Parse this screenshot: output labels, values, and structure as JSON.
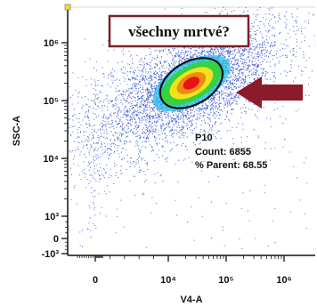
{
  "chart_data": {
    "type": "scatter",
    "plot_style": "flow-cytometry-density-dotplot",
    "xlabel": "V4-A",
    "ylabel": "SSC-A",
    "x_scale": "biexponential",
    "y_scale": "biexponential",
    "x_ticks": [
      {
        "value": 0,
        "label": "0"
      },
      {
        "value": 10000,
        "label": "10⁴"
      },
      {
        "value": 100000,
        "label": "10⁵"
      },
      {
        "value": 1000000,
        "label": "10⁶"
      }
    ],
    "y_ticks": [
      {
        "value": -1000,
        "label": "-10³"
      },
      {
        "value": 0,
        "label": "0"
      },
      {
        "value": 1000,
        "label": "10³"
      },
      {
        "value": 10000,
        "label": "10⁴"
      },
      {
        "value": 100000,
        "label": "10⁵"
      },
      {
        "value": 1000000,
        "label": "10⁶"
      }
    ],
    "population_center": {
      "x": 25000,
      "y": 200000
    },
    "gate": {
      "name": "P10",
      "count_label": "Count: 6855",
      "parent_label": "% Parent: 68.55",
      "count": 6855,
      "percent_parent": 68.55
    },
    "annotation": {
      "text": "všechny mrtvé?",
      "border_color": "#7a1f2b",
      "arrow_color": "#8b1a2b"
    },
    "colors": {
      "dots": "#2a4cd8",
      "density_low": "#1fc1e8",
      "density_mid": "#34d23a",
      "density_high_1": "#f2e21c",
      "density_high_2": "#f08a14",
      "density_peak": "#e81414",
      "gate_outline": "#111111",
      "corner_marker": "#f2e21c"
    }
  }
}
